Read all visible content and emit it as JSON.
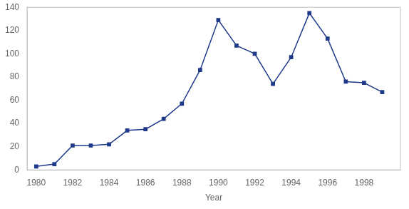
{
  "chart_data": {
    "type": "line",
    "x": [
      1980,
      1981,
      1982,
      1983,
      1984,
      1985,
      1986,
      1987,
      1988,
      1989,
      1990,
      1991,
      1992,
      1993,
      1994,
      1995,
      1996,
      1997,
      1998,
      1999
    ],
    "values": [
      3,
      5,
      21,
      21,
      22,
      34,
      35,
      44,
      57,
      86,
      129,
      107,
      100,
      74,
      97,
      135,
      113,
      76,
      75,
      67
    ],
    "color": "#1F3A8A",
    "marker": "square",
    "xlabel": "Year",
    "xlim": [
      1979.5,
      2000
    ],
    "ylim": [
      0,
      140
    ],
    "xticks": [
      1980,
      1982,
      1984,
      1986,
      1988,
      1990,
      1992,
      1994,
      1996,
      1998
    ],
    "yticks": [
      0,
      20,
      40,
      60,
      80,
      100,
      120,
      140
    ],
    "grid": false
  }
}
